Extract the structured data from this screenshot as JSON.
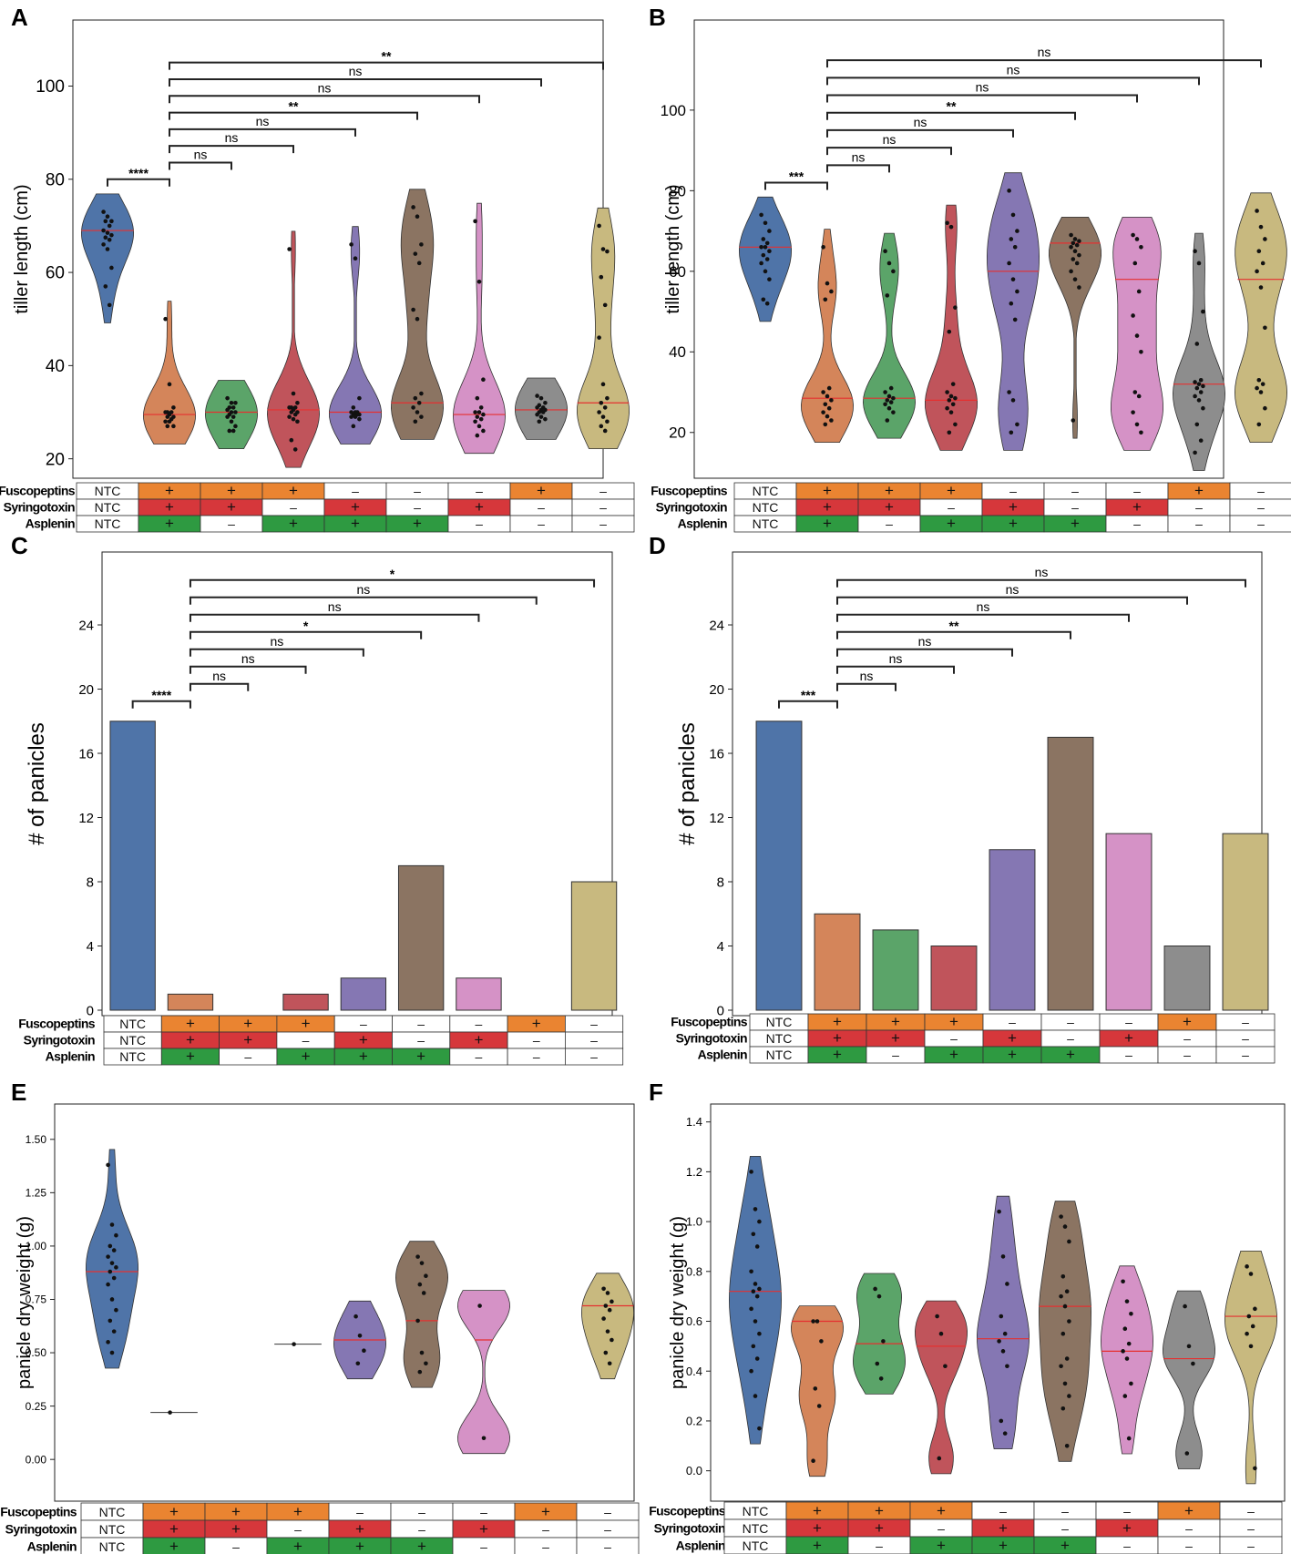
{
  "figure": {
    "treatment_rows": [
      "Fuscopeptins",
      "Syringotoxin",
      "Asplenin"
    ],
    "treatment_table": [
      [
        "NTC",
        "+",
        "+",
        "+",
        "-",
        "-",
        "-",
        "+",
        "-"
      ],
      [
        "NTC",
        "+",
        "+",
        "-",
        "+",
        "-",
        "+",
        "-",
        "-"
      ],
      [
        "NTC",
        "+",
        "-",
        "+",
        "+",
        "+",
        "-",
        "-",
        "-"
      ]
    ],
    "colors": {
      "groups": [
        "#4f74a8",
        "#d4855a",
        "#5ba469",
        "#c0545b",
        "#8577b3",
        "#8b7462",
        "#d592c6",
        "#8d8d8d",
        "#c8b97f"
      ],
      "plus_row": [
        "#ea8431",
        "#d6373b",
        "#2e9a41"
      ],
      "median": "#e53030"
    }
  },
  "chart_data": [
    {
      "panel": "A",
      "type": "violin",
      "ylabel": "tiller length (cm)",
      "ylim": [
        17,
        113
      ],
      "yticks": [
        20,
        40,
        60,
        80,
        100
      ],
      "medians": [
        69,
        29.5,
        30,
        30.5,
        30,
        32,
        29.5,
        30.5,
        32
      ],
      "points": [
        [
          73,
          72,
          71,
          71,
          70,
          69,
          68.5,
          68,
          67.5,
          67,
          66,
          65,
          61,
          57,
          53
        ],
        [
          50,
          36,
          31,
          30,
          30,
          30,
          29.5,
          29,
          29,
          28.5,
          28,
          28,
          27,
          27
        ],
        [
          33,
          32,
          32,
          31,
          31,
          30.5,
          30,
          30,
          29.5,
          29,
          29,
          28,
          27,
          26,
          26
        ],
        [
          65,
          34,
          32,
          31,
          31,
          31,
          30.5,
          30,
          30,
          29.5,
          29,
          28.5,
          28,
          24,
          22
        ],
        [
          66,
          63,
          33,
          31,
          30,
          30,
          30,
          29.5,
          29.5,
          29.5,
          29,
          29,
          28.5,
          27
        ],
        [
          74,
          72,
          66,
          64,
          62,
          52,
          50,
          34,
          33,
          32,
          31,
          30,
          29,
          28
        ],
        [
          71,
          58,
          37,
          33,
          31,
          30,
          30,
          29.5,
          29,
          28.5,
          28,
          27,
          26,
          25
        ],
        [
          33.5,
          33,
          32,
          31.5,
          31,
          31,
          30.5,
          30.5,
          30,
          30,
          29.5,
          29,
          28.5,
          28
        ],
        [
          70,
          65,
          64.5,
          59,
          53,
          46,
          36,
          33,
          32,
          31,
          30,
          29,
          28,
          27,
          26
        ]
      ],
      "comparisons": [
        {
          "groups": [
            1,
            2
          ],
          "label": "****"
        },
        {
          "groups": [
            2,
            3
          ],
          "label": "ns"
        },
        {
          "groups": [
            2,
            4
          ],
          "label": "ns"
        },
        {
          "groups": [
            2,
            5
          ],
          "label": "ns"
        },
        {
          "groups": [
            2,
            6
          ],
          "label": "**"
        },
        {
          "groups": [
            2,
            7
          ],
          "label": "ns"
        },
        {
          "groups": [
            2,
            8
          ],
          "label": "ns"
        },
        {
          "groups": [
            2,
            9
          ],
          "label": "**"
        }
      ]
    },
    {
      "panel": "B",
      "type": "violin",
      "ylabel": "tiller length (cm)",
      "ylim": [
        10,
        121
      ],
      "yticks": [
        20,
        40,
        60,
        80,
        100
      ],
      "medians": [
        66,
        28.5,
        28.5,
        28,
        60,
        67,
        58,
        32,
        58
      ],
      "points": [
        [
          74,
          72,
          70,
          68,
          67,
          66,
          66,
          65,
          64,
          63,
          62,
          60,
          58,
          53,
          52
        ],
        [
          66,
          57,
          55,
          53,
          31,
          30,
          29,
          28,
          27,
          26,
          25,
          24,
          23,
          22
        ],
        [
          65,
          62,
          60,
          54,
          31,
          30,
          29,
          28.5,
          28,
          27.5,
          27,
          26,
          25,
          23
        ],
        [
          72,
          71,
          51,
          45,
          32,
          30,
          29,
          28.5,
          28,
          27,
          26,
          25,
          22,
          20
        ],
        [
          80,
          74,
          70,
          68,
          66,
          62,
          58,
          55,
          52,
          48,
          30,
          28,
          22,
          20
        ],
        [
          69,
          68,
          67.5,
          67,
          66.5,
          66,
          65,
          64,
          63,
          62,
          60,
          58,
          56,
          23
        ],
        [
          69,
          68,
          66,
          62,
          55,
          49,
          44,
          40,
          30,
          29,
          25,
          22,
          20
        ],
        [
          65,
          62,
          50,
          42,
          33,
          32.5,
          32,
          31.5,
          31,
          30,
          29,
          28,
          26,
          22,
          18,
          15
        ],
        [
          75,
          71,
          68,
          65,
          62,
          60,
          56,
          46,
          33,
          32,
          31,
          30,
          26,
          22
        ]
      ],
      "comparisons": [
        {
          "groups": [
            1,
            2
          ],
          "label": "***"
        },
        {
          "groups": [
            2,
            3
          ],
          "label": "ns"
        },
        {
          "groups": [
            2,
            4
          ],
          "label": "ns"
        },
        {
          "groups": [
            2,
            5
          ],
          "label": "ns"
        },
        {
          "groups": [
            2,
            6
          ],
          "label": "**"
        },
        {
          "groups": [
            2,
            7
          ],
          "label": "ns"
        },
        {
          "groups": [
            2,
            8
          ],
          "label": "ns"
        },
        {
          "groups": [
            2,
            9
          ],
          "label": "ns"
        }
      ]
    },
    {
      "panel": "C",
      "type": "bar",
      "ylabel": "# of panicles",
      "ylim": [
        0,
        28.2
      ],
      "yticks": [
        0,
        4,
        8,
        12,
        16,
        20,
        24
      ],
      "values": [
        18,
        1,
        0,
        1,
        2,
        9,
        2,
        0,
        8
      ],
      "comparisons": [
        {
          "groups": [
            1,
            2
          ],
          "label": "****"
        },
        {
          "groups": [
            2,
            3
          ],
          "label": "ns"
        },
        {
          "groups": [
            2,
            4
          ],
          "label": "ns"
        },
        {
          "groups": [
            2,
            5
          ],
          "label": "ns"
        },
        {
          "groups": [
            2,
            6
          ],
          "label": "*"
        },
        {
          "groups": [
            2,
            7
          ],
          "label": "ns"
        },
        {
          "groups": [
            2,
            8
          ],
          "label": "ns"
        },
        {
          "groups": [
            2,
            9
          ],
          "label": "*"
        }
      ]
    },
    {
      "panel": "D",
      "type": "bar",
      "ylabel": "# of panicles",
      "ylim": [
        0,
        28.2
      ],
      "yticks": [
        0,
        4,
        8,
        12,
        16,
        20,
        24
      ],
      "values": [
        18,
        6,
        5,
        4,
        10,
        17,
        11,
        4,
        11
      ],
      "comparisons": [
        {
          "groups": [
            1,
            2
          ],
          "label": "***"
        },
        {
          "groups": [
            2,
            3
          ],
          "label": "ns"
        },
        {
          "groups": [
            2,
            4
          ],
          "label": "ns"
        },
        {
          "groups": [
            2,
            5
          ],
          "label": "ns"
        },
        {
          "groups": [
            2,
            6
          ],
          "label": "**"
        },
        {
          "groups": [
            2,
            7
          ],
          "label": "ns"
        },
        {
          "groups": [
            2,
            8
          ],
          "label": "ns"
        },
        {
          "groups": [
            2,
            9
          ],
          "label": "ns"
        }
      ]
    },
    {
      "panel": "E",
      "type": "violin",
      "ylabel": "panicle dry weight (g)",
      "ylim": [
        -0.17,
        1.64
      ],
      "yticks": [
        0.0,
        0.25,
        0.5,
        0.75,
        1.0,
        1.25,
        1.5
      ],
      "ytick_labels": [
        "0.00",
        "0.25",
        "0.50",
        "0.75",
        "1.00",
        "1.25",
        "1.50"
      ],
      "medians": [
        0.88,
        0.22,
        null,
        0.54,
        0.56,
        0.65,
        0.56,
        null,
        0.72
      ],
      "points": [
        [
          1.38,
          1.1,
          1.05,
          1.0,
          0.98,
          0.95,
          0.92,
          0.9,
          0.88,
          0.85,
          0.82,
          0.75,
          0.7,
          0.65,
          0.6,
          0.55,
          0.5
        ],
        [
          0.22
        ],
        [],
        [
          0.54
        ],
        [
          0.67,
          0.58,
          0.51,
          0.45
        ],
        [
          0.95,
          0.92,
          0.86,
          0.82,
          0.78,
          0.65,
          0.5,
          0.45,
          0.41
        ],
        [
          0.72,
          0.1
        ],
        [],
        [
          0.8,
          0.78,
          0.74,
          0.72,
          0.7,
          0.66,
          0.6,
          0.56,
          0.5,
          0.45
        ]
      ]
    },
    {
      "panel": "F",
      "type": "violin",
      "ylabel": "panicle dry weight (g)",
      "ylim": [
        -0.1,
        1.45
      ],
      "yticks": [
        0.0,
        0.2,
        0.4,
        0.6,
        0.8,
        1.0,
        1.2,
        1.4
      ],
      "ytick_labels": [
        "0.0",
        "0.2",
        "0.4",
        "0.6",
        "0.8",
        "1.0",
        "1.2",
        "1.4"
      ],
      "medians": [
        0.72,
        0.6,
        0.51,
        0.5,
        0.53,
        0.66,
        0.48,
        0.45,
        0.62
      ],
      "points": [
        [
          1.2,
          1.05,
          1.0,
          0.95,
          0.9,
          0.8,
          0.75,
          0.73,
          0.72,
          0.7,
          0.65,
          0.6,
          0.55,
          0.5,
          0.45,
          0.4,
          0.3,
          0.17
        ],
        [
          0.6,
          0.6,
          0.52,
          0.33,
          0.26,
          0.04
        ],
        [
          0.73,
          0.7,
          0.52,
          0.43,
          0.37
        ],
        [
          0.62,
          0.55,
          0.42,
          0.05
        ],
        [
          1.04,
          0.86,
          0.75,
          0.62,
          0.55,
          0.52,
          0.48,
          0.42,
          0.2,
          0.15
        ],
        [
          1.02,
          0.98,
          0.92,
          0.78,
          0.72,
          0.7,
          0.66,
          0.6,
          0.55,
          0.45,
          0.42,
          0.35,
          0.3,
          0.25,
          0.1
        ],
        [
          0.76,
          0.68,
          0.63,
          0.57,
          0.51,
          0.48,
          0.45,
          0.35,
          0.3,
          0.13
        ],
        [
          0.66,
          0.5,
          0.43,
          0.07
        ],
        [
          0.82,
          0.79,
          0.65,
          0.62,
          0.58,
          0.55,
          0.5,
          0.01
        ]
      ]
    }
  ]
}
